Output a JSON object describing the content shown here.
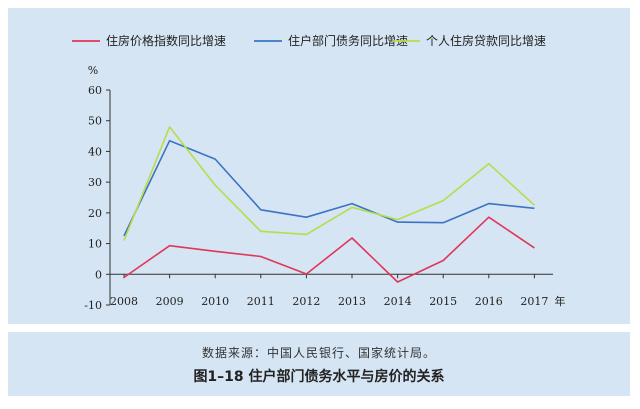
{
  "caption": {
    "source": "数据来源：中国人民银行、国家统计局。",
    "figure_title": "图1–18    住户部门债务水平与房价的关系"
  },
  "chart_data": {
    "type": "line",
    "y_unit": "%",
    "x_unit": "年",
    "x": [
      "2008",
      "2009",
      "2010",
      "2011",
      "2012",
      "2013",
      "2014",
      "2015",
      "2016",
      "2017"
    ],
    "ylim": [
      -10,
      60
    ],
    "yticks": [
      -10,
      0,
      10,
      20,
      30,
      40,
      50,
      60
    ],
    "grid": false,
    "legend_position": "top",
    "series": [
      {
        "name": "住房价格指数同比增速",
        "color": "#e0365a",
        "values": [
          -1,
          9.3,
          7.5,
          5.8,
          0.1,
          11.8,
          -2.5,
          4.5,
          18.6,
          8.6
        ]
      },
      {
        "name": "住户部门债务同比增速",
        "color": "#3a74c4",
        "values": [
          12.5,
          43.5,
          37.5,
          21,
          18.6,
          23,
          17,
          16.8,
          23,
          21.5
        ]
      },
      {
        "name": "个人住房贷款同比增速",
        "color": "#b8dc4a",
        "values": [
          11,
          48,
          29,
          14,
          13,
          21.8,
          17.8,
          24,
          36,
          22.5
        ]
      }
    ]
  }
}
